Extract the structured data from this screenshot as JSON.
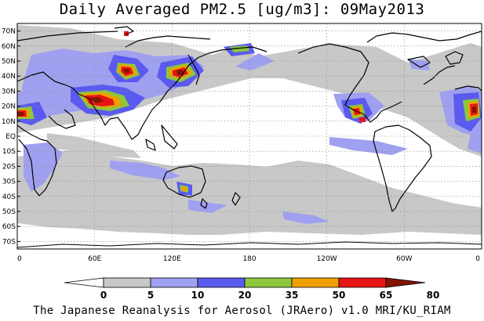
{
  "title": "Daily Averaged PM2.5 [ug/m3]: 09May2013",
  "footer": "The Japanese Reanalysis for Aerosol (JRAero) v1.0 MRI/KU_RIAM",
  "map": {
    "lat_labels": [
      "70N",
      "60N",
      "50N",
      "40N",
      "30N",
      "20N",
      "10N",
      "EQ",
      "10S",
      "20S",
      "30S",
      "40S",
      "50S",
      "60S",
      "70S"
    ],
    "lat_values": [
      70,
      60,
      50,
      40,
      30,
      20,
      10,
      0,
      -10,
      -20,
      -30,
      -40,
      -50,
      -60,
      -70
    ],
    "lon_labels": [
      "0",
      "60E",
      "120E",
      "180",
      "120W",
      "60W",
      "0"
    ],
    "lon_values": [
      0,
      60,
      120,
      180,
      240,
      300,
      360
    ],
    "lat_range": [
      -75,
      75
    ],
    "lon_range": [
      0,
      360
    ],
    "gridlines": true
  },
  "colorbar": {
    "tick_labels": [
      "0",
      "5",
      "10",
      "20",
      "35",
      "50",
      "65",
      "80"
    ],
    "colors": [
      "#ffffff",
      "#c8c8c8",
      "#a0a0f0",
      "#5a5af0",
      "#8cc83c",
      "#f0a000",
      "#e61414",
      "#821400"
    ]
  }
}
